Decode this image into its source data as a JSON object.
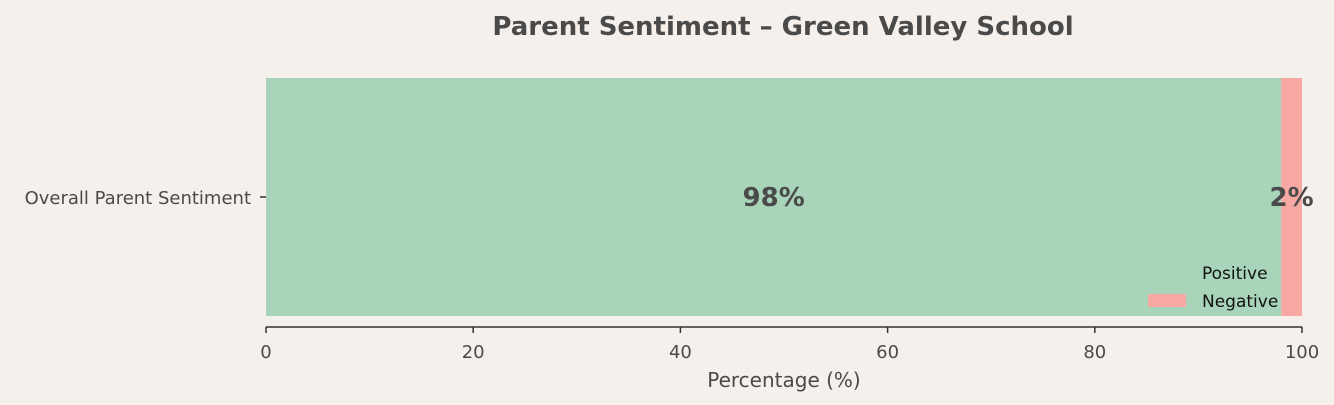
{
  "chart_data": {
    "type": "bar",
    "orientation": "horizontal",
    "stacked": true,
    "title": "Parent Sentiment – Green Valley School",
    "xlabel": "Percentage (%)",
    "ylabel": "",
    "categories": [
      "Overall Parent Sentiment"
    ],
    "series": [
      {
        "name": "Positive",
        "values": [
          98
        ],
        "label": "98%",
        "color": "#a8d5ba"
      },
      {
        "name": "Negative",
        "values": [
          2
        ],
        "label": "2%",
        "color": "#f7a8a3"
      }
    ],
    "xlim": [
      0,
      100
    ],
    "xticks": [
      "0",
      "20",
      "40",
      "60",
      "80",
      "100"
    ],
    "grid": false,
    "legend_position": "lower-right"
  }
}
